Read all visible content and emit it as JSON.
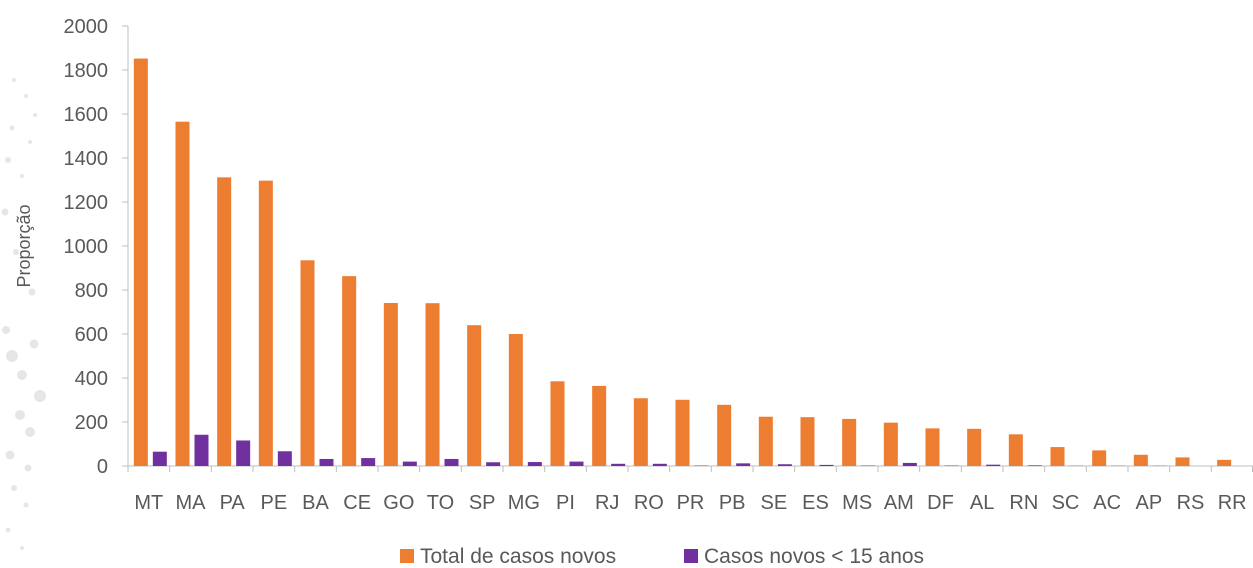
{
  "chart_data": {
    "type": "bar",
    "title": "",
    "xlabel": "",
    "ylabel": "Proporção",
    "ylim": [
      0,
      2000
    ],
    "y_ticks": [
      0,
      200,
      400,
      600,
      800,
      1000,
      1200,
      1400,
      1600,
      1800,
      2000
    ],
    "grid": false,
    "legend_position": "bottom",
    "categories": [
      "MT",
      "MA",
      "PA",
      "PE",
      "BA",
      "CE",
      "GO",
      "TO",
      "SP",
      "MG",
      "PI",
      "RJ",
      "RO",
      "PR",
      "PB",
      "SE",
      "ES",
      "MS",
      "AM",
      "DF",
      "AL",
      "RN",
      "SC",
      "AC",
      "AP",
      "RS",
      "RR"
    ],
    "series": [
      {
        "name": "Total de casos novos",
        "color": "#ED7D31",
        "values": [
          1852,
          1565,
          1312,
          1297,
          935,
          863,
          741,
          740,
          640,
          600,
          385,
          364,
          308,
          301,
          278,
          224,
          222,
          214,
          197,
          171,
          169,
          144,
          86,
          71,
          51,
          39,
          28
        ]
      },
      {
        "name": "Casos novos < 15 anos",
        "color": "#7030A0",
        "values": [
          65,
          142,
          116,
          67,
          32,
          36,
          20,
          32,
          17,
          18,
          20,
          10,
          10,
          2,
          12,
          8,
          5,
          2,
          14,
          2,
          6,
          3,
          1,
          1,
          1,
          0,
          0
        ]
      }
    ]
  }
}
